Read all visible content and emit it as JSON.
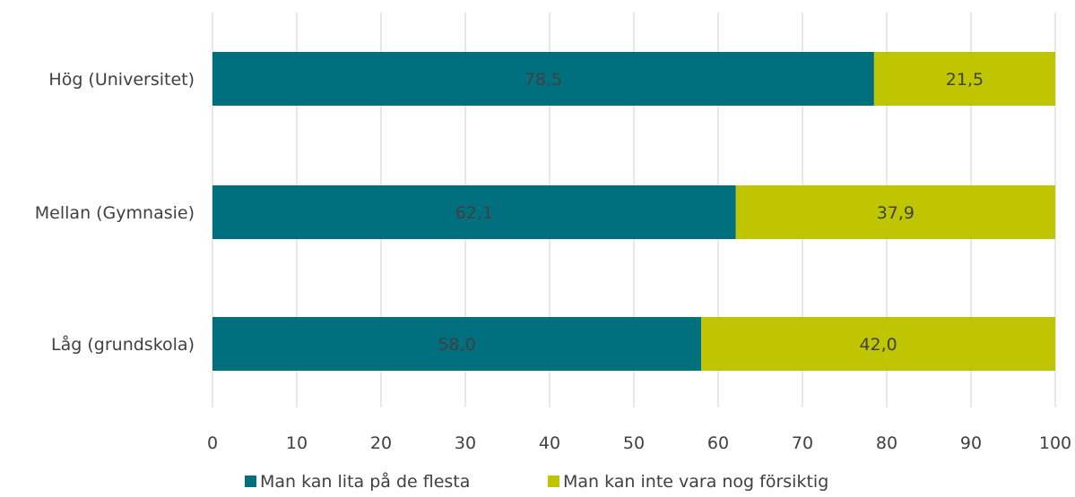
{
  "chart_data": {
    "type": "bar",
    "orientation": "horizontal",
    "stacked": true,
    "categories": [
      "Hög (Universitet)",
      "Mellan (Gymnasie)",
      "Låg (grundskola)"
    ],
    "series": [
      {
        "name": "Man kan lita på de flesta",
        "color": "#00707f",
        "values": [
          78.5,
          62.1,
          58.0
        ],
        "labels": [
          "78,5",
          "62,1",
          "58,0"
        ]
      },
      {
        "name": "Man kan inte vara nog försiktig",
        "color": "#bfc600",
        "values": [
          21.5,
          37.9,
          42.0
        ],
        "labels": [
          "21,5",
          "37,9",
          "42,0"
        ]
      }
    ],
    "xlim": [
      0,
      100
    ],
    "xticks": [
      0,
      10,
      20,
      30,
      40,
      50,
      60,
      70,
      80,
      90,
      100
    ],
    "grid": "vertical",
    "legend": "bottom-center"
  }
}
